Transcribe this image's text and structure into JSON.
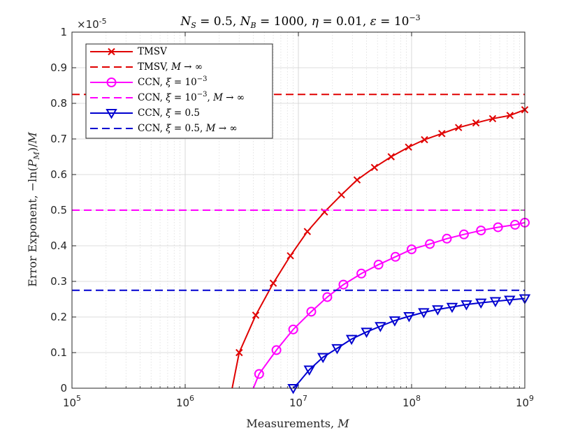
{
  "chart_data": {
    "type": "line",
    "title": "N_S = 0.5, N_B = 1000, η = 0.01, ε = 10^-3",
    "title_parts": {
      "ns": "N",
      "ns_sub": "S",
      "ns_val": " = 0.5, ",
      "nb": "N",
      "nb_sub": "B",
      "nb_val": " = 1000, ",
      "eta": "η",
      "eta_val": " = 0.01, ",
      "eps": "ε",
      "eps_val": " = 10",
      "eps_exp": "−3"
    },
    "xlabel": "Measurements, M",
    "xlabel_parts": {
      "text": "Measurements, ",
      "var": "M"
    },
    "ylabel": "Error Exponent, −ln(P_M)/M",
    "ylabel_parts": {
      "text": "Error Exponent, −ln(",
      "p": "P",
      "p_sub": "M",
      "close": ")/",
      "var": "M"
    },
    "xscale": "log",
    "xlim": [
      100000,
      1000000000
    ],
    "ylim": [
      0,
      1
    ],
    "y_multiplier": "×10",
    "y_multiplier_exp": "-5",
    "grid": true,
    "legend_position": "top-left",
    "x_ticks": [
      {
        "value": 100000,
        "base": "10",
        "exp": "5"
      },
      {
        "value": 1000000,
        "base": "10",
        "exp": "6"
      },
      {
        "value": 10000000,
        "base": "10",
        "exp": "7"
      },
      {
        "value": 100000000,
        "base": "10",
        "exp": "8"
      },
      {
        "value": 1000000000,
        "base": "10",
        "exp": "9"
      }
    ],
    "y_ticks": [
      {
        "value": 0,
        "label": "0"
      },
      {
        "value": 0.1,
        "label": "0.1"
      },
      {
        "value": 0.2,
        "label": "0.2"
      },
      {
        "value": 0.3,
        "label": "0.3"
      },
      {
        "value": 0.4,
        "label": "0.4"
      },
      {
        "value": 0.5,
        "label": "0.5"
      },
      {
        "value": 0.6,
        "label": "0.6"
      },
      {
        "value": 0.7,
        "label": "0.7"
      },
      {
        "value": 0.8,
        "label": "0.8"
      },
      {
        "value": 0.9,
        "label": "0.9"
      },
      {
        "value": 1,
        "label": "1"
      }
    ],
    "series": [
      {
        "name": "TMSV",
        "legend": {
          "text": "TMSV"
        },
        "color": "#e00000",
        "style": "solid",
        "marker": "x",
        "x": [
          2600000,
          3000000,
          4200000,
          6000000,
          8500000,
          12000000,
          17000000,
          24000000,
          33000000,
          47000000,
          66000000,
          94000000,
          130000000,
          185000000,
          260000000,
          370000000,
          520000000,
          740000000,
          1000000000
        ],
        "values": [
          0,
          0.1,
          0.205,
          0.295,
          0.372,
          0.44,
          0.495,
          0.543,
          0.585,
          0.62,
          0.65,
          0.677,
          0.698,
          0.715,
          0.732,
          0.745,
          0.757,
          0.766,
          0.782
        ],
        "marker_x": [
          3000000,
          4200000,
          6000000,
          8500000,
          12000000,
          17000000,
          24000000,
          33000000,
          47000000,
          66000000,
          94000000,
          130000000,
          185000000,
          260000000,
          370000000,
          520000000,
          740000000,
          1000000000
        ]
      },
      {
        "name": "TMSV, M → ∞",
        "legend": {
          "text": "TMSV, ",
          "var": "M",
          "arrow": " → ∞"
        },
        "color": "#e00000",
        "style": "dashed",
        "marker": "none",
        "x": [
          100000,
          1000000000
        ],
        "values": [
          0.825,
          0.825
        ]
      },
      {
        "name": "CCN, ξ = 10^-3",
        "legend": {
          "text": "CCN, ",
          "var": "ξ",
          "eq": " = 10",
          "exp": "−3"
        },
        "color": "#ff00ff",
        "style": "solid",
        "marker": "o",
        "x": [
          4000000,
          4500000,
          6400000,
          9000000,
          13000000,
          18000000,
          25000000,
          36000000,
          51000000,
          72000000,
          100000000,
          145000000,
          205000000,
          290000000,
          410000000,
          580000000,
          820000000,
          1000000000
        ],
        "values": [
          0,
          0.04,
          0.107,
          0.165,
          0.215,
          0.256,
          0.291,
          0.322,
          0.347,
          0.369,
          0.39,
          0.405,
          0.42,
          0.432,
          0.443,
          0.452,
          0.459,
          0.465
        ],
        "marker_x": [
          4500000,
          6400000,
          9000000,
          13000000,
          18000000,
          25000000,
          36000000,
          51000000,
          72000000,
          100000000,
          145000000,
          205000000,
          290000000,
          410000000,
          580000000,
          820000000,
          1000000000
        ]
      },
      {
        "name": "CCN, ξ = 10^-3, M → ∞",
        "legend": {
          "text": "CCN, ",
          "var": "ξ",
          "eq": " = 10",
          "exp": "−3",
          "tail": ", ",
          "var2": "M",
          "arrow": " → ∞"
        },
        "color": "#ff00ff",
        "style": "dashed",
        "marker": "none",
        "x": [
          100000,
          1000000000
        ],
        "values": [
          0.5,
          0.5
        ]
      },
      {
        "name": "CCN, ξ = 0.5",
        "legend": {
          "text": "CCN, ",
          "var": "ξ",
          "eq": " = 0.5"
        },
        "color": "#0000d0",
        "style": "solid",
        "marker": "v",
        "x": [
          9000000,
          10000000,
          12500000,
          16500000,
          22000000,
          29500000,
          40000000,
          53000000,
          71000000,
          95000000,
          128000000,
          170000000,
          228000000,
          305000000,
          410000000,
          550000000,
          735000000,
          1000000000
        ],
        "values": [
          0,
          0.015,
          0.052,
          0.087,
          0.112,
          0.138,
          0.158,
          0.174,
          0.19,
          0.202,
          0.213,
          0.221,
          0.228,
          0.235,
          0.24,
          0.244,
          0.248,
          0.252
        ],
        "marker_x": [
          9000000,
          12500000,
          16500000,
          22000000,
          29500000,
          40000000,
          53000000,
          71000000,
          95000000,
          128000000,
          170000000,
          228000000,
          305000000,
          410000000,
          550000000,
          735000000,
          1000000000
        ]
      },
      {
        "name": "CCN, ξ = 0.5, M → ∞",
        "legend": {
          "text": "CCN, ",
          "var": "ξ",
          "eq": " = 0.5, ",
          "var2": "M",
          "arrow": " → ∞"
        },
        "color": "#0000d0",
        "style": "dashed",
        "marker": "none",
        "x": [
          100000,
          1000000000
        ],
        "values": [
          0.275,
          0.275
        ]
      }
    ]
  }
}
